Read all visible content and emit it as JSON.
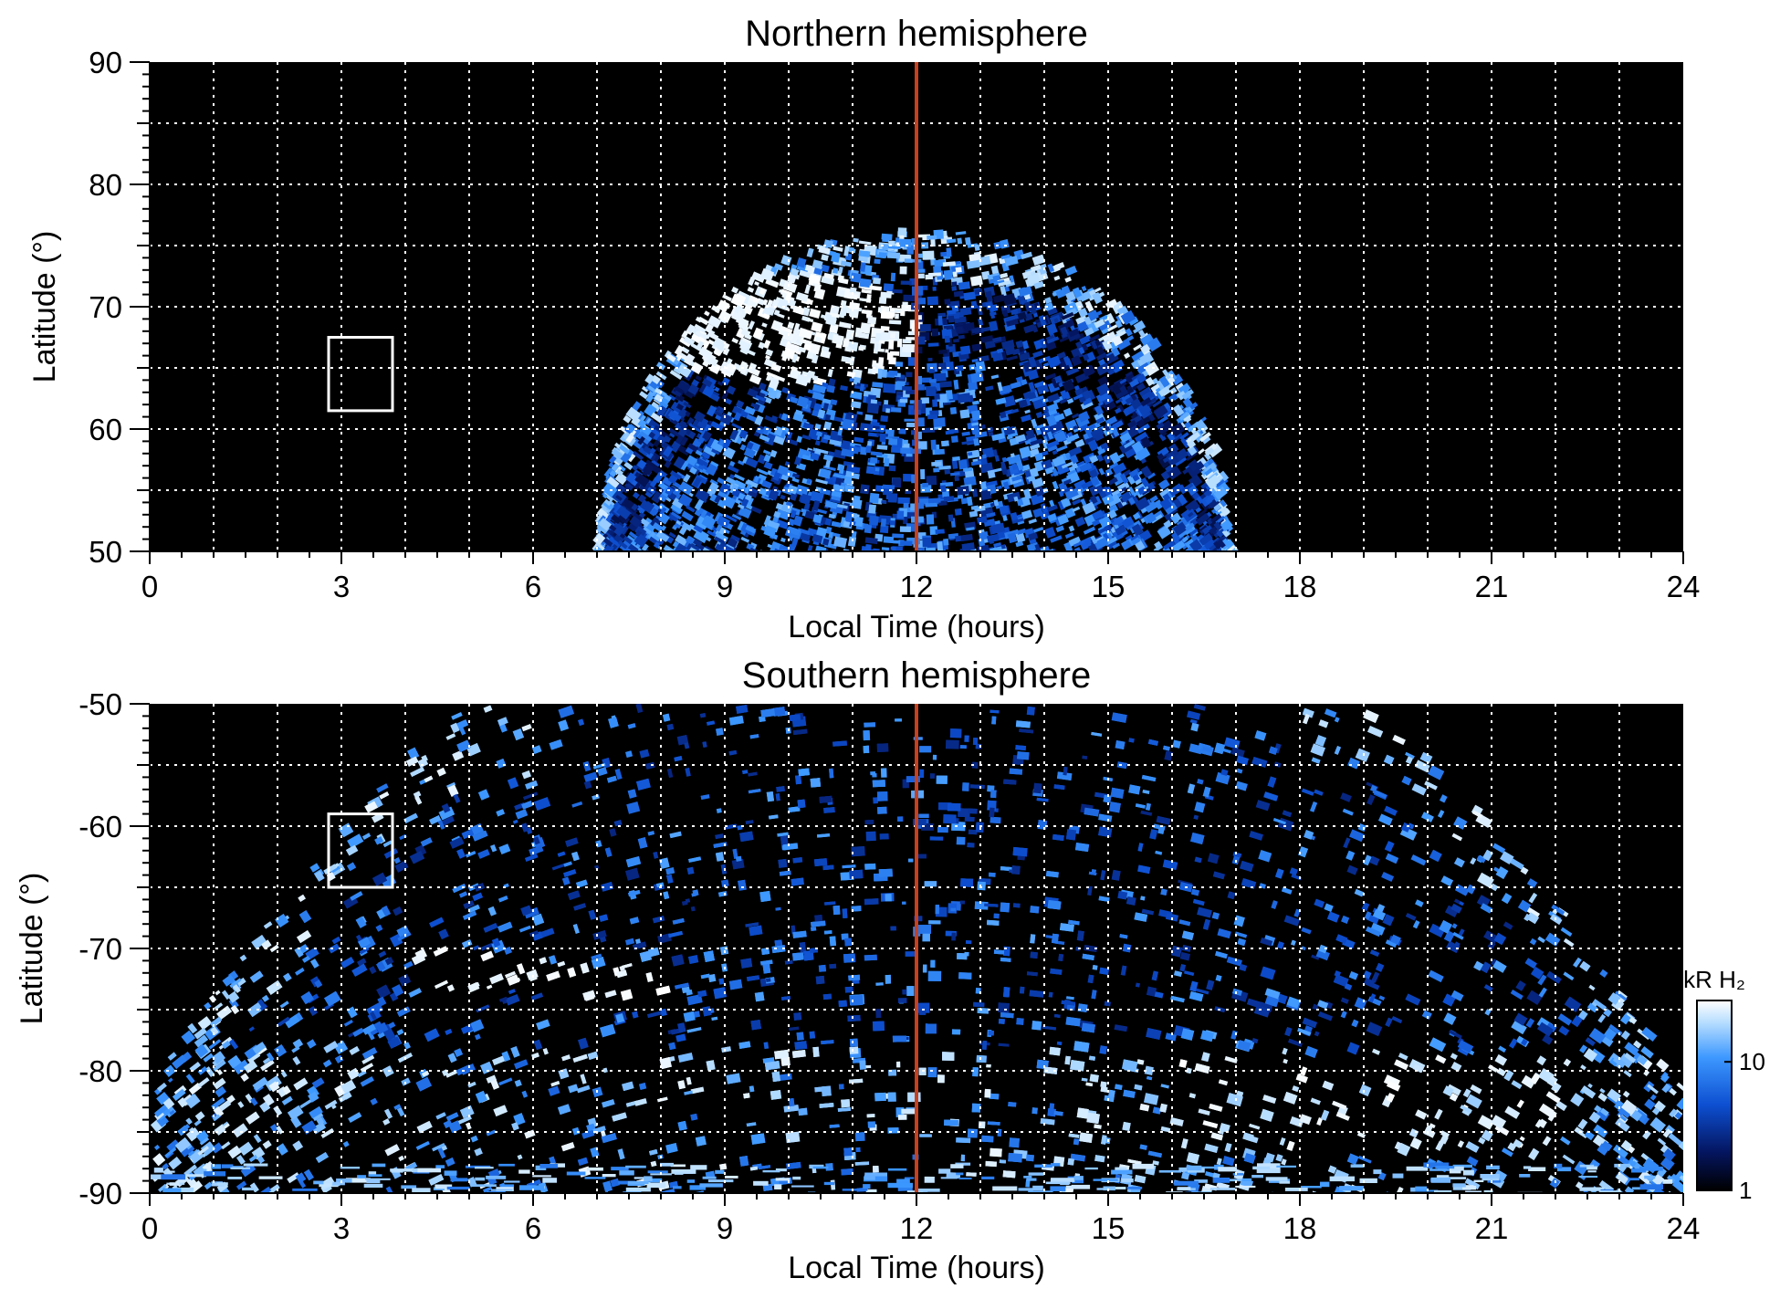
{
  "chart_data": [
    {
      "type": "heatmap",
      "title": "Northern hemisphere",
      "xlabel": "Local Time (hours)",
      "ylabel": "Latitude (°)",
      "xlim": [
        0,
        24
      ],
      "ylim": [
        50,
        90
      ],
      "x_ticks": [
        0,
        3,
        6,
        9,
        12,
        15,
        18,
        21,
        24
      ],
      "y_ticks": [
        50,
        60,
        70,
        80,
        90
      ],
      "grid": true,
      "grid_x": [
        1,
        2,
        3,
        4,
        5,
        6,
        7,
        8,
        9,
        10,
        11,
        12,
        13,
        14,
        15,
        16,
        17,
        18,
        19,
        20,
        21,
        22,
        23
      ],
      "grid_y": [
        55,
        60,
        65,
        70,
        75,
        80,
        85
      ],
      "noon_line_x": 12,
      "box": {
        "x": [
          2.8,
          3.8
        ],
        "y": [
          61.5,
          67.5
        ]
      },
      "emission_region": {
        "x": [
          7.0,
          16.8
        ],
        "lat_min": 50,
        "peak_lat": 76.5
      },
      "bright_spot": {
        "x": 10.0,
        "y": 68.5
      }
    },
    {
      "type": "heatmap",
      "title": "Southern hemisphere",
      "xlabel": "Local Time (hours)",
      "ylabel": "Latitude (°)",
      "xlim": [
        0,
        24
      ],
      "ylim": [
        -90,
        -50
      ],
      "x_ticks": [
        0,
        3,
        6,
        9,
        12,
        15,
        18,
        21,
        24
      ],
      "y_ticks": [
        -50,
        -60,
        -70,
        -80,
        -90
      ],
      "grid": true,
      "grid_x": [
        1,
        2,
        3,
        4,
        5,
        6,
        7,
        8,
        9,
        10,
        11,
        12,
        13,
        14,
        15,
        16,
        17,
        18,
        19,
        20,
        21,
        22,
        23
      ],
      "grid_y": [
        -55,
        -60,
        -65,
        -70,
        -75,
        -80,
        -85
      ],
      "noon_line_x": 12,
      "box": {
        "x": [
          2.8,
          3.8
        ],
        "y": [
          -65.0,
          -59.0
        ]
      },
      "emission_region": {
        "x": [
          0,
          24
        ],
        "lat_max": -50,
        "edge_lat": -81
      },
      "bright_arc": {
        "x": [
          4,
          8.2
        ],
        "y": [
          -71.5,
          -73.0
        ]
      }
    }
  ],
  "colorbar": {
    "label": "kR H₂",
    "scale": "log",
    "range": [
      1,
      30
    ],
    "ticks": [
      {
        "value": 10,
        "label": "10"
      },
      {
        "value": 1,
        "label": "1"
      }
    ],
    "colors": [
      "#000000",
      "#04155f",
      "#0d4fd1",
      "#3d98ff",
      "#b4dcff",
      "#ffffff"
    ]
  },
  "colors": {
    "background": "#000000",
    "noon_line": "#c8401e",
    "grid": "#ffffff",
    "box": "#ffffff"
  }
}
